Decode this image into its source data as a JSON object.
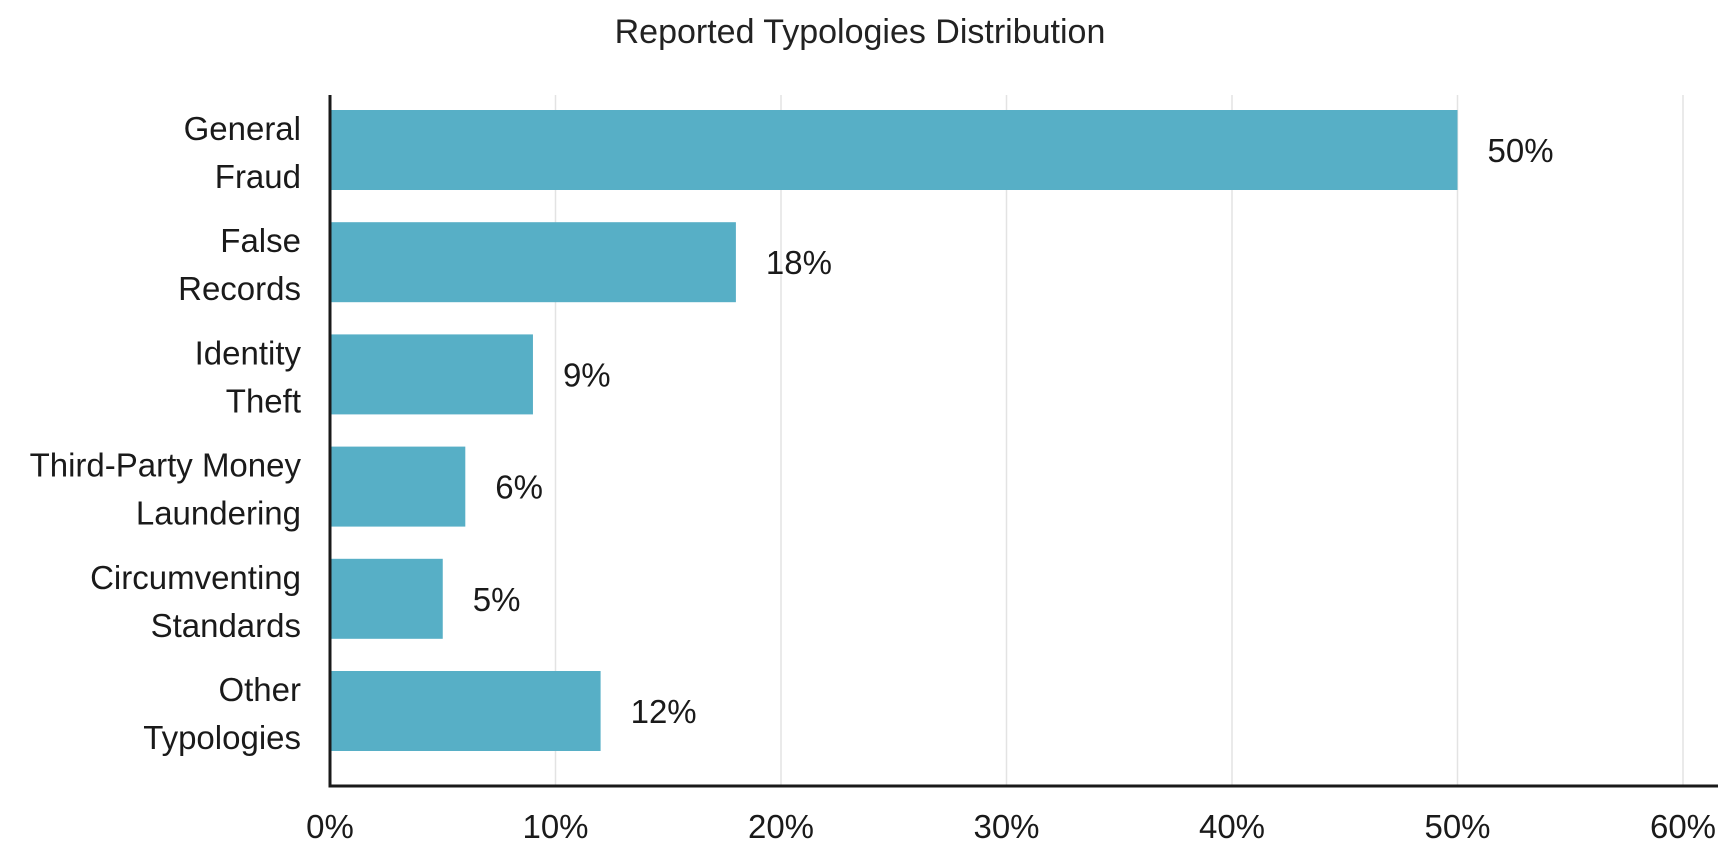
{
  "chart_data": {
    "type": "bar",
    "orientation": "horizontal",
    "title": "Reported Typologies Distribution",
    "xlabel": "",
    "ylabel": "",
    "categories": [
      [
        "General",
        "Fraud"
      ],
      [
        "False",
        "Records"
      ],
      [
        "Identity",
        "Theft"
      ],
      [
        "Third-Party Money",
        "Laundering"
      ],
      [
        "Circumventing",
        "Standards"
      ],
      [
        "Other",
        "Typologies"
      ]
    ],
    "values": [
      50,
      18,
      9,
      6,
      5,
      12
    ],
    "value_labels": [
      "50%",
      "18%",
      "9%",
      "6%",
      "5%",
      "12%"
    ],
    "xlim": [
      0,
      60
    ],
    "x_ticks": [
      0,
      10,
      20,
      30,
      40,
      50,
      60
    ],
    "x_tick_labels": [
      "0%",
      "10%",
      "20%",
      "30%",
      "40%",
      "50%",
      "60%"
    ],
    "grid": "vertical",
    "legend": "none",
    "colors": {
      "bar": "#57afc6",
      "grid": "#e3e3e3",
      "axis": "#1a1a1a"
    }
  }
}
